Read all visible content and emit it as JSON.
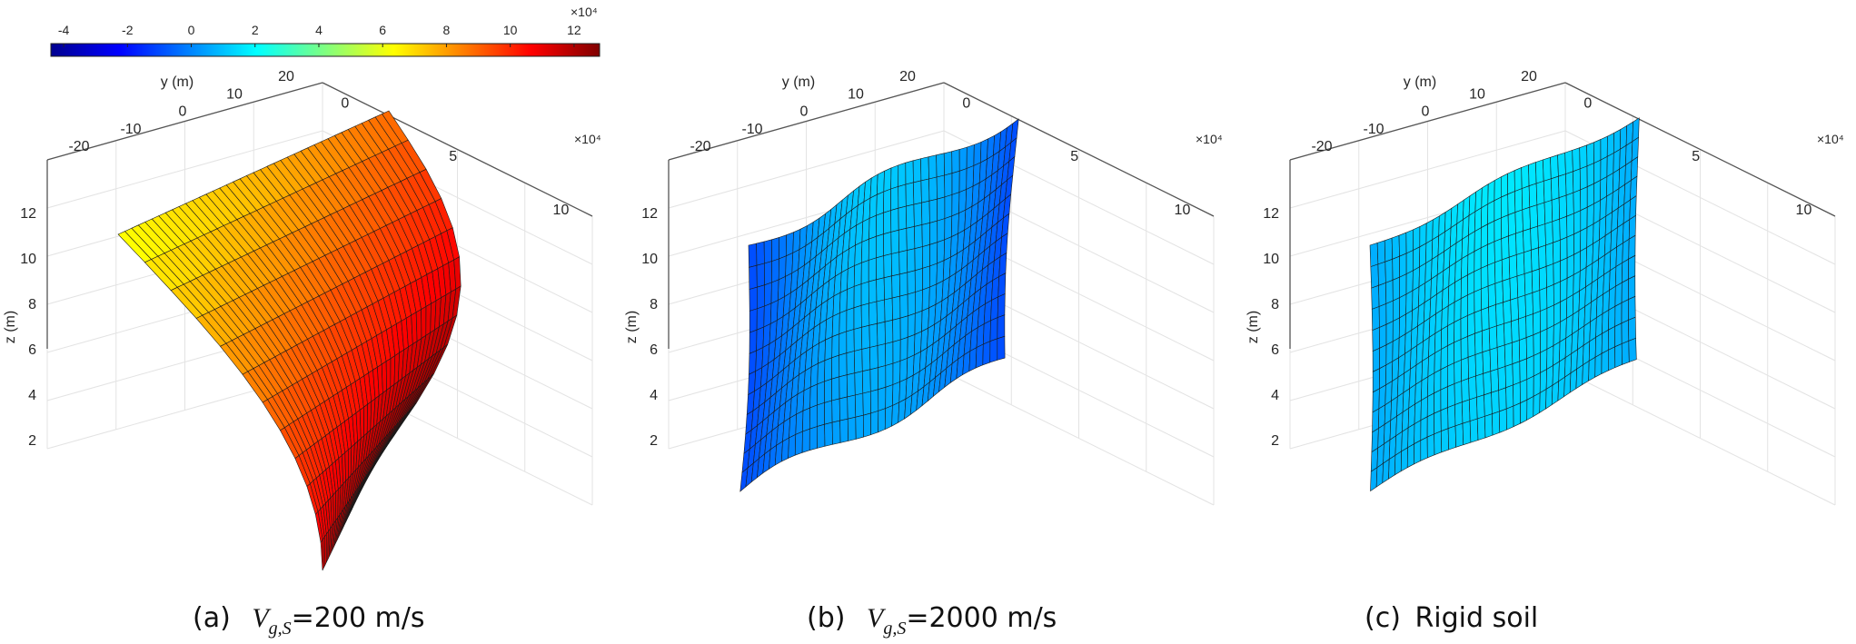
{
  "colorbar": {
    "ticks": [
      "-4",
      "-2",
      "0",
      "2",
      "4",
      "6",
      "8",
      "10",
      "12"
    ],
    "tick_values": [
      -4,
      -2,
      0,
      2,
      4,
      6,
      8,
      10,
      12
    ],
    "range": [
      -4.4,
      12.8
    ],
    "exponent_label": "×10⁴",
    "colormap": "jet"
  },
  "chart_data": [
    {
      "type": "surface",
      "panel": "a",
      "caption_prefix": "(a)",
      "caption_math": "Vg,S",
      "caption_suffix": "=200 m/s",
      "ylabel": "y (m)",
      "zlabel": "z (m)",
      "y_ticks": [
        "20",
        "10",
        "0",
        "-10",
        "-20"
      ],
      "x_ticks": [
        "0",
        "5",
        "10"
      ],
      "x_exponent": "×10⁴",
      "z_ticks": [
        "12",
        "10",
        "8",
        "6",
        "4",
        "2"
      ],
      "z_range": [
        1,
        12.5
      ],
      "color_value_range": [
        5,
        12.5
      ],
      "grid": "on"
    },
    {
      "type": "surface",
      "panel": "b",
      "caption_prefix": "(b)",
      "caption_math": "Vg,S",
      "caption_suffix": "=2000 m/s",
      "ylabel": "y (m)",
      "zlabel": "z (m)",
      "y_ticks": [
        "20",
        "10",
        "0",
        "-10",
        "-20"
      ],
      "x_ticks": [
        "0",
        "5",
        "10"
      ],
      "x_exponent": "×10⁴",
      "z_ticks": [
        "12",
        "10",
        "8",
        "6",
        "4",
        "2"
      ],
      "z_range": [
        1,
        12.5
      ],
      "color_value_range": [
        -2,
        2
      ],
      "grid": "on"
    },
    {
      "type": "surface",
      "panel": "c",
      "caption_prefix": "(c)",
      "caption_math": "",
      "caption_suffix": "Rigid soil",
      "ylabel": "y (m)",
      "zlabel": "z (m)",
      "y_ticks": [
        "20",
        "10",
        "0",
        "-10",
        "-20"
      ],
      "x_ticks": [
        "0",
        "5",
        "10"
      ],
      "x_exponent": "×10⁴",
      "z_ticks": [
        "12",
        "10",
        "8",
        "6",
        "4",
        "2"
      ],
      "z_range": [
        1,
        12.5
      ],
      "color_value_range": [
        -1,
        2
      ],
      "grid": "on"
    }
  ]
}
